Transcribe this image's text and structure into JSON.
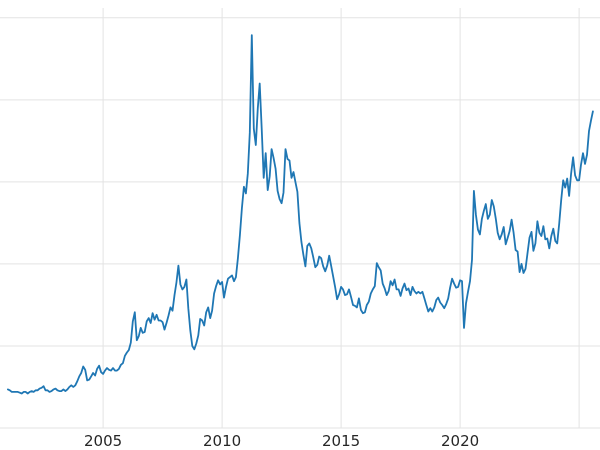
{
  "chart_data": {
    "type": "line",
    "title": "",
    "xlabel": "",
    "ylabel": "",
    "legend": null,
    "line_color": "#1f77b4",
    "grid_color": "#e3e3e3",
    "background": "#ffffff",
    "x_start": 2001.0,
    "x_step_months": 1,
    "xlim": [
      2000.67,
      2025.88
    ],
    "ylim": [
      0,
      51.2
    ],
    "x_tick_labels": [
      "2005",
      "2010",
      "2015",
      "2020"
    ],
    "x_tick_positions": [
      2005,
      2010,
      2015,
      2020
    ],
    "x_gridlines": [
      2005,
      2010,
      2015,
      2020,
      2025
    ],
    "y_gridlines": [
      0,
      10,
      20,
      30,
      40,
      50
    ],
    "values": [
      4.7,
      4.6,
      4.4,
      4.4,
      4.4,
      4.4,
      4.3,
      4.2,
      4.4,
      4.4,
      4.2,
      4.4,
      4.5,
      4.4,
      4.6,
      4.6,
      4.8,
      4.9,
      5.1,
      4.6,
      4.6,
      4.4,
      4.5,
      4.7,
      4.8,
      4.6,
      4.5,
      4.5,
      4.7,
      4.5,
      4.7,
      5.0,
      5.2,
      5.0,
      5.2,
      5.7,
      6.3,
      6.7,
      7.5,
      7.1,
      5.8,
      5.9,
      6.3,
      6.7,
      6.4,
      7.2,
      7.6,
      6.8,
      6.6,
      7.0,
      7.3,
      7.1,
      7.0,
      7.3,
      7.0,
      7.0,
      7.2,
      7.7,
      7.9,
      8.8,
      9.2,
      9.5,
      10.4,
      13.0,
      14.1,
      10.7,
      11.2,
      12.2,
      11.6,
      11.7,
      13.0,
      13.4,
      12.8,
      14.0,
      13.2,
      13.8,
      13.1,
      13.1,
      12.9,
      12.0,
      12.8,
      13.7,
      14.7,
      14.3,
      16.2,
      17.7,
      19.8,
      17.5,
      16.9,
      17.2,
      18.1,
      14.6,
      11.9,
      10.0,
      9.6,
      10.3,
      11.3,
      13.3,
      13.1,
      12.5,
      14.1,
      14.7,
      13.4,
      14.3,
      16.4,
      17.3,
      18.0,
      17.5,
      17.8,
      15.9,
      17.2,
      18.2,
      18.4,
      18.6,
      17.9,
      18.4,
      20.7,
      23.5,
      26.8,
      29.4,
      28.6,
      31.0,
      36.0,
      47.9,
      36.5,
      34.5,
      39.0,
      42.0,
      36.5,
      30.5,
      33.5,
      29.0,
      30.7,
      34.0,
      32.9,
      31.6,
      28.9,
      27.9,
      27.4,
      28.7,
      34.0,
      32.8,
      32.6,
      30.5,
      31.2,
      30.0,
      28.8,
      25.0,
      22.7,
      21.1,
      19.7,
      22.2,
      22.5,
      21.9,
      20.8,
      19.6,
      19.9,
      20.9,
      20.7,
      19.7,
      19.1,
      19.8,
      21.0,
      19.8,
      18.5,
      17.2,
      15.7,
      16.3,
      17.2,
      16.9,
      16.2,
      16.3,
      16.9,
      16.0,
      15.0,
      14.9,
      14.7,
      15.8,
      14.4,
      14.0,
      14.1,
      15.0,
      15.4,
      16.4,
      16.9,
      17.3,
      20.1,
      19.6,
      19.2,
      17.6,
      17.0,
      16.2,
      16.7,
      17.9,
      17.4,
      18.1,
      16.9,
      16.9,
      16.1,
      17.0,
      17.6,
      16.8,
      17.0,
      16.2,
      17.2,
      16.7,
      16.4,
      16.6,
      16.4,
      16.6,
      15.8,
      15.0,
      14.2,
      14.6,
      14.2,
      14.7,
      15.6,
      15.9,
      15.3,
      15.0,
      14.6,
      15.1,
      15.8,
      17.1,
      18.2,
      17.6,
      17.1,
      17.2,
      18.0,
      17.9,
      12.2,
      15.2,
      16.6,
      17.9,
      20.5,
      28.9,
      26.0,
      24.2,
      23.6,
      25.5,
      26.5,
      27.3,
      25.5,
      26.0,
      27.8,
      27.0,
      25.5,
      23.8,
      23.0,
      23.6,
      24.5,
      22.4,
      23.2,
      24.0,
      25.4,
      23.8,
      21.7,
      21.5,
      19.0,
      20.0,
      18.9,
      19.4,
      21.3,
      23.2,
      23.9,
      21.6,
      22.5,
      25.2,
      23.8,
      23.4,
      24.6,
      23.0,
      23.1,
      21.9,
      23.4,
      24.3,
      22.8,
      22.5,
      24.9,
      27.8,
      30.2,
      29.3,
      30.4,
      28.3,
      31.0,
      33.0,
      30.8,
      30.2,
      30.2,
      32.1,
      33.5,
      32.2,
      33.3,
      36.2,
      37.5,
      38.6
    ]
  }
}
